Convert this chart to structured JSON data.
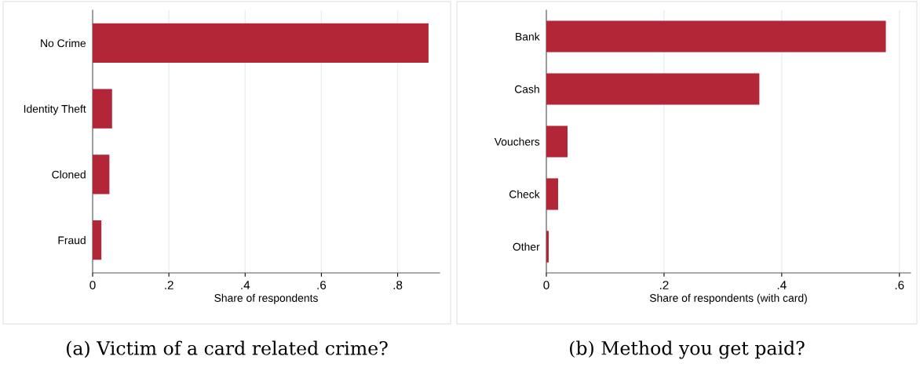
{
  "chart_data": [
    {
      "type": "bar",
      "orientation": "horizontal",
      "title": "(a) Victim of a card related crime?",
      "xlabel": "Share of respondents",
      "categories": [
        "No Crime",
        "Identity Theft",
        "Cloned",
        "Fraud"
      ],
      "values": [
        0.881,
        0.051,
        0.044,
        0.023
      ],
      "color": "#b22638",
      "xlim": [
        0,
        0.91
      ],
      "xticks": [
        0,
        {
          "value": 0.2,
          "label": ".2"
        },
        {
          "value": 0.4,
          "label": ".4"
        },
        {
          "value": 0.6,
          "label": ".6"
        },
        {
          "value": 0.8,
          "label": ".8"
        }
      ],
      "grid": "x"
    },
    {
      "type": "bar",
      "orientation": "horizontal",
      "title": "(b) Method you get paid?",
      "xlabel": "Share of respondents (with card)",
      "categories": [
        "Bank",
        "Cash",
        "Vouchers",
        "Check",
        "Other"
      ],
      "values": [
        0.577,
        0.362,
        0.036,
        0.02,
        0.004
      ],
      "color": "#b22638",
      "xlim": [
        0,
        0.619
      ],
      "xticks": [
        0,
        {
          "value": 0.2,
          "label": ".2"
        },
        {
          "value": 0.4,
          "label": ".4"
        },
        {
          "value": 0.6,
          "label": ".6"
        }
      ],
      "grid": "x"
    }
  ]
}
